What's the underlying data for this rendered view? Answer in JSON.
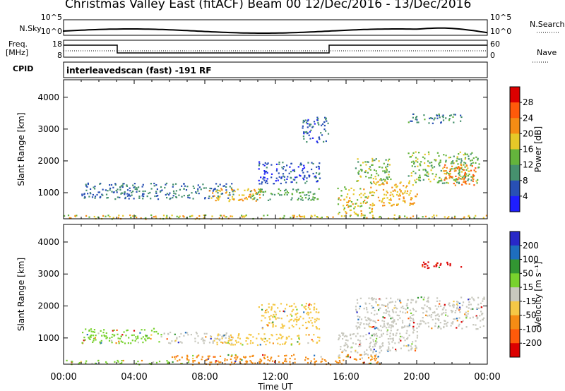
{
  "header": {
    "station": "Christmas Valley East (fitACF)",
    "beam": "Beam 00",
    "dates": "12/Dec/2016 - 13/Dec/2016"
  },
  "strips": {
    "nsky_label": "N.Sky",
    "nsearch_label": "N.Search",
    "noise_ticks": [
      "10^5",
      "10^0"
    ],
    "freq_label": "Freq.\n[MHz]",
    "freq_ticks": [
      "18",
      "8"
    ],
    "nave_label": "Nave",
    "nave_ticks": [
      "60",
      "0"
    ],
    "cpid_label": "CPID",
    "cpid_text": "interleavedscan (fast) -191 RF"
  },
  "chart_data": [
    {
      "type": "heatmap",
      "name": "power",
      "ylabel": "Slant Range [km]",
      "yticks": [
        1000,
        2000,
        3000,
        4000
      ],
      "ylim": [
        180,
        4550
      ],
      "xlim_hours": [
        0,
        24
      ],
      "colorbar": {
        "label": "Power [dB]",
        "ticks": [
          4,
          8,
          12,
          16,
          20,
          24,
          28
        ],
        "range": [
          0,
          32
        ],
        "colors": [
          "#1e1eff",
          "#2850b4",
          "#46916e",
          "#64b43c",
          "#e6c828",
          "#f58c14",
          "#ff5a0a",
          "#dc0000"
        ]
      },
      "regions": [
        {
          "t": [
            1.0,
            9.8
          ],
          "r": [
            820,
            1320
          ],
          "v": 8
        },
        {
          "t": [
            8.2,
            11.2
          ],
          "r": [
            750,
            1150
          ],
          "v": 20
        },
        {
          "t": [
            10.5,
            14.5
          ],
          "r": [
            780,
            1150
          ],
          "v": 12
        },
        {
          "t": [
            11.0,
            14.5
          ],
          "r": [
            1300,
            2000
          ],
          "v": 6
        },
        {
          "t": [
            13.5,
            15.0
          ],
          "r": [
            2600,
            3400
          ],
          "v": 7
        },
        {
          "t": [
            15.5,
            17.5
          ],
          "r": [
            300,
            1200
          ],
          "v": 18
        },
        {
          "t": [
            16.5,
            18.5
          ],
          "r": [
            1300,
            2100
          ],
          "v": 14
        },
        {
          "t": [
            17.5,
            20.0
          ],
          "r": [
            600,
            1400
          ],
          "v": 20
        },
        {
          "t": [
            19.5,
            23.5
          ],
          "r": [
            1300,
            2300
          ],
          "v": 14
        },
        {
          "t": [
            21.5,
            23.3
          ],
          "r": [
            1250,
            1900
          ],
          "v": 24
        },
        {
          "t": [
            19.5,
            22.5
          ],
          "r": [
            3200,
            3500
          ],
          "v": 9
        },
        {
          "t": [
            0.0,
            24.0
          ],
          "r": [
            190,
            320
          ],
          "v": 18
        }
      ]
    },
    {
      "type": "heatmap",
      "name": "velocity",
      "ylabel": "Slant Range [km]",
      "yticks": [
        1000,
        2000,
        3000,
        4000
      ],
      "ylim": [
        180,
        4550
      ],
      "xlim_hours": [
        0,
        24
      ],
      "xticks": [
        "00:00",
        "04:00",
        "08:00",
        "12:00",
        "16:00",
        "20:00",
        "00:00"
      ],
      "xlabel": "Time UT",
      "colorbar": {
        "label": "Velocity [m s⁻¹]",
        "ticks": [
          200,
          100,
          50,
          15,
          -15,
          -50,
          -100,
          -200
        ],
        "colors": [
          "#2828c8",
          "#1e6ebe",
          "#329632",
          "#78d22d",
          "#c8c8be",
          "#f5c846",
          "#f58c14",
          "#ff5a0a",
          "#dc0000"
        ]
      },
      "regions": [
        {
          "t": [
            1.0,
            5.5
          ],
          "r": [
            850,
            1320
          ],
          "v": "#78d22d"
        },
        {
          "t": [
            5.5,
            9.5
          ],
          "r": [
            850,
            1200
          ],
          "v": "#c8c8be"
        },
        {
          "t": [
            8.5,
            14.5
          ],
          "r": [
            800,
            1150
          ],
          "v": "#f5c846"
        },
        {
          "t": [
            11.0,
            14.5
          ],
          "r": [
            1300,
            2100
          ],
          "v": "#f5c846"
        },
        {
          "t": [
            15.5,
            18.0
          ],
          "r": [
            400,
            1200
          ],
          "v": "#c8c8be"
        },
        {
          "t": [
            16.5,
            23.8
          ],
          "r": [
            1300,
            2300
          ],
          "v": "#c8c8be"
        },
        {
          "t": [
            17.5,
            20.0
          ],
          "r": [
            600,
            1400
          ],
          "v": "#c8c8be"
        },
        {
          "t": [
            20.0,
            22.5
          ],
          "r": [
            3200,
            3400
          ],
          "v": "#dc0000"
        },
        {
          "t": [
            6.0,
            18.0
          ],
          "r": [
            190,
            500
          ],
          "v": "#f58c14"
        },
        {
          "t": [
            0.0,
            6.0
          ],
          "r": [
            190,
            320
          ],
          "v": "#78d22d"
        }
      ]
    }
  ]
}
